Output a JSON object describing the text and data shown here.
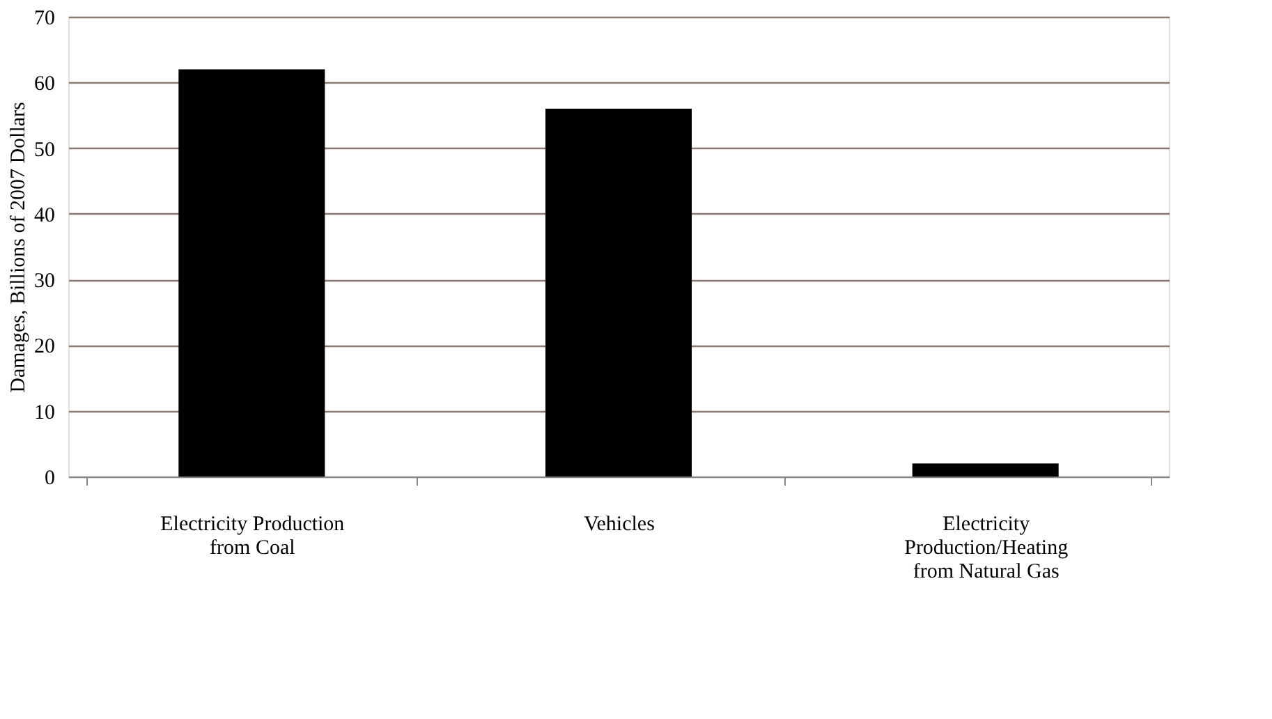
{
  "chart_data": {
    "type": "bar",
    "categories": [
      "Electricity Production\nfrom Coal",
      "Vehicles",
      "Electricity\nProduction/Heating\nfrom Natural Gas"
    ],
    "values": [
      62,
      56,
      2
    ],
    "color": "#000000",
    "ylabel": "Damages, Billions of 2007 Dollars",
    "ylim": [
      0,
      70
    ],
    "yticks": [
      0,
      10,
      20,
      30,
      40,
      50,
      60,
      70
    ],
    "grid": "y"
  }
}
